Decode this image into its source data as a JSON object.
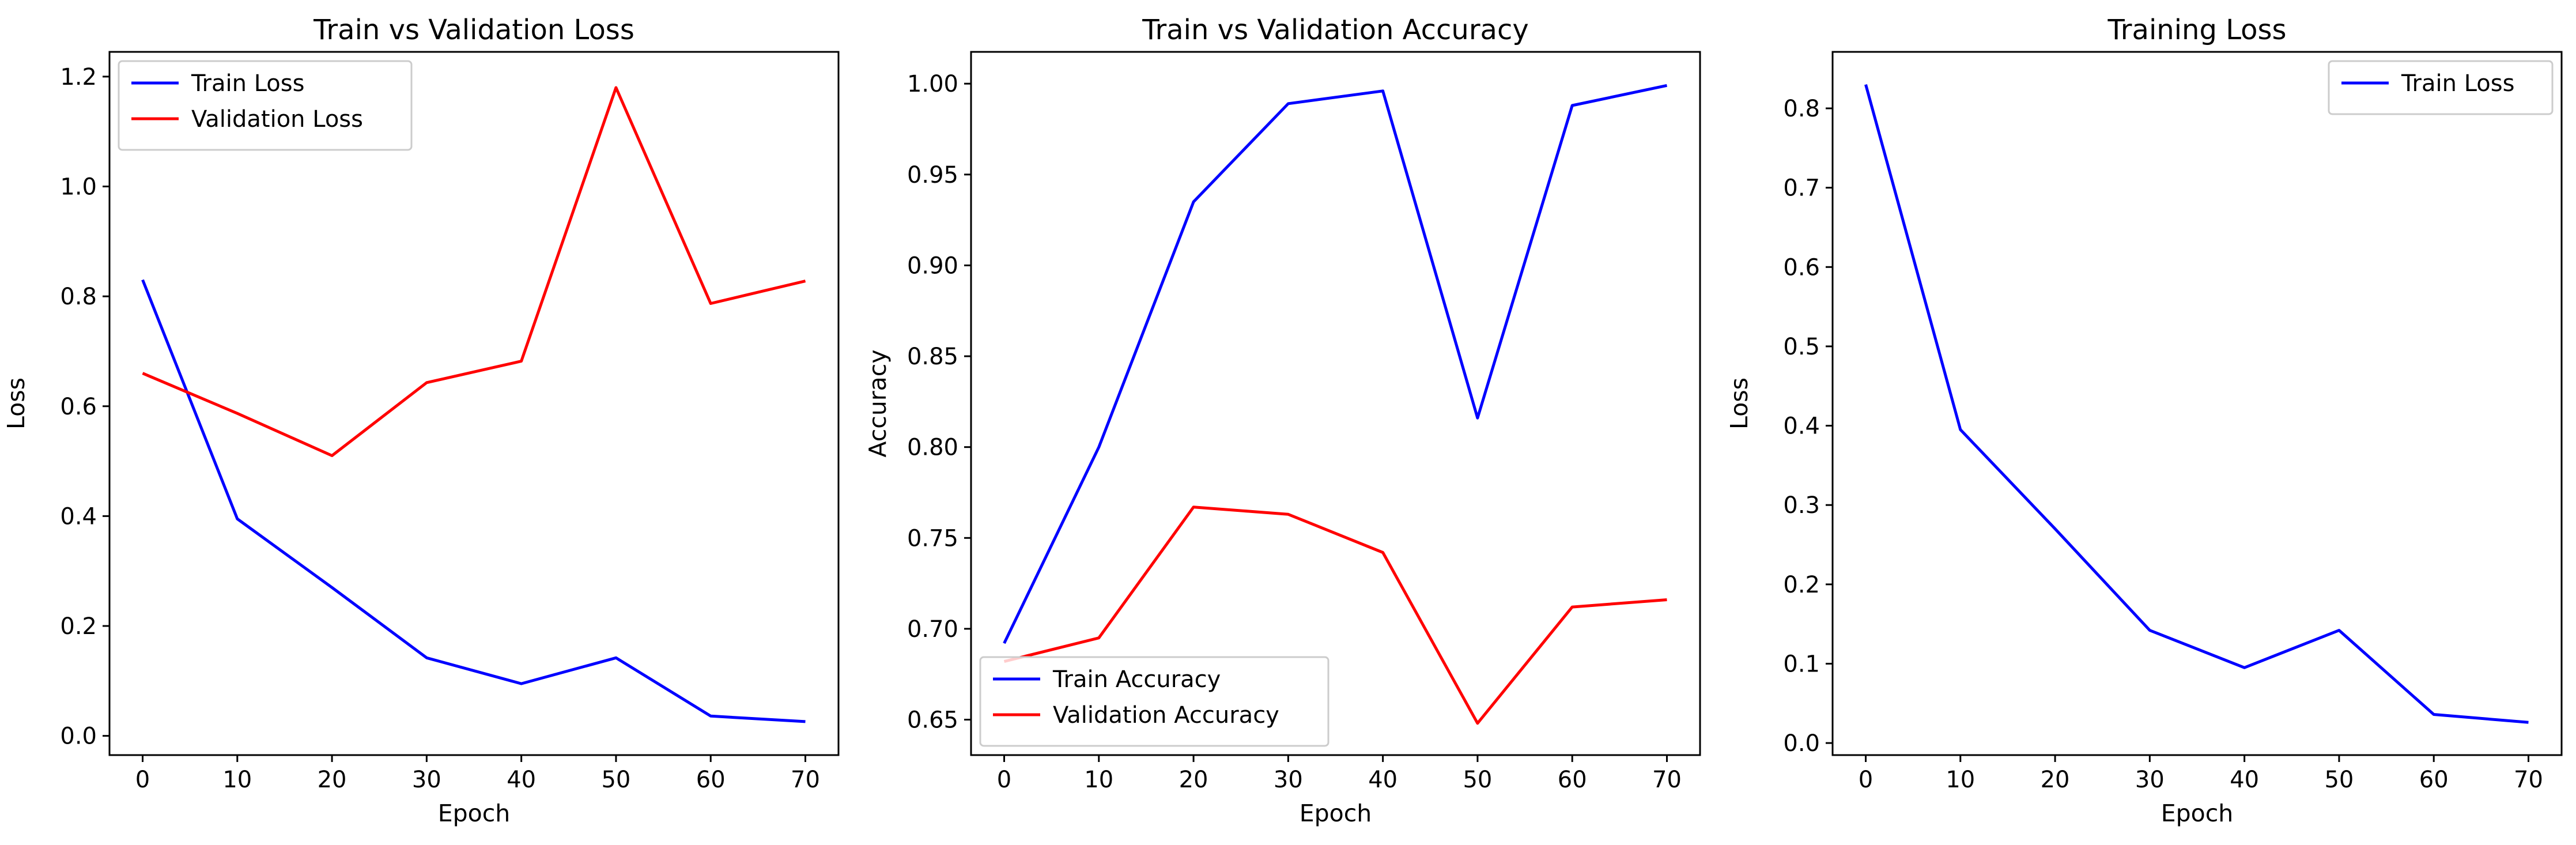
{
  "chart_data": [
    {
      "type": "line",
      "title": "Train vs Validation Loss",
      "xlabel": "Epoch",
      "ylabel": "Loss",
      "xlim": [
        -3.5,
        73.5
      ],
      "ylim": [
        -0.035,
        1.245
      ],
      "xticks": [
        0,
        10,
        20,
        30,
        40,
        50,
        60,
        70
      ],
      "yticks": [
        0.0,
        0.2,
        0.4,
        0.6,
        0.8,
        1.0,
        1.2
      ],
      "ytick_decimals": 1,
      "x": [
        0,
        10,
        20,
        30,
        40,
        50,
        60,
        70
      ],
      "series": [
        {
          "name": "Train Loss",
          "color": "#0000ff",
          "values": [
            0.83,
            0.395,
            0.27,
            0.142,
            0.095,
            0.142,
            0.036,
            0.026
          ]
        },
        {
          "name": "Validation Loss",
          "color": "#ff0000",
          "values": [
            0.66,
            0.587,
            0.51,
            0.643,
            0.682,
            1.18,
            0.787,
            0.828
          ]
        }
      ],
      "legend": "upper-left",
      "grid": false
    },
    {
      "type": "line",
      "title": "Train vs Validation Accuracy",
      "xlabel": "Epoch",
      "ylabel": "Accuracy",
      "xlim": [
        -3.5,
        73.5
      ],
      "ylim": [
        0.6305,
        1.0175
      ],
      "xticks": [
        0,
        10,
        20,
        30,
        40,
        50,
        60,
        70
      ],
      "yticks": [
        0.65,
        0.7,
        0.75,
        0.8,
        0.85,
        0.9,
        0.95,
        1.0
      ],
      "ytick_decimals": 2,
      "x": [
        0,
        10,
        20,
        30,
        40,
        50,
        60,
        70
      ],
      "series": [
        {
          "name": "Train Accuracy",
          "color": "#0000ff",
          "values": [
            0.692,
            0.8,
            0.935,
            0.989,
            0.996,
            0.816,
            0.988,
            0.999
          ]
        },
        {
          "name": "Validation Accuracy",
          "color": "#ff0000",
          "values": [
            0.682,
            0.695,
            0.767,
            0.763,
            0.742,
            0.648,
            0.712,
            0.716
          ]
        }
      ],
      "legend": "lower-left",
      "grid": false
    },
    {
      "type": "line",
      "title": "Training Loss",
      "xlabel": "Epoch",
      "ylabel": "Loss",
      "xlim": [
        -3.5,
        73.5
      ],
      "ylim": [
        -0.0152,
        0.8712
      ],
      "xticks": [
        0,
        10,
        20,
        30,
        40,
        50,
        60,
        70
      ],
      "yticks": [
        0.0,
        0.1,
        0.2,
        0.3,
        0.4,
        0.5,
        0.6,
        0.7,
        0.8
      ],
      "ytick_decimals": 1,
      "x": [
        0,
        10,
        20,
        30,
        40,
        50,
        60,
        70
      ],
      "series": [
        {
          "name": "Train Loss",
          "color": "#0000ff",
          "values": [
            0.83,
            0.395,
            0.27,
            0.142,
            0.095,
            0.142,
            0.036,
            0.026
          ]
        }
      ],
      "legend": "upper-right",
      "grid": false
    }
  ]
}
